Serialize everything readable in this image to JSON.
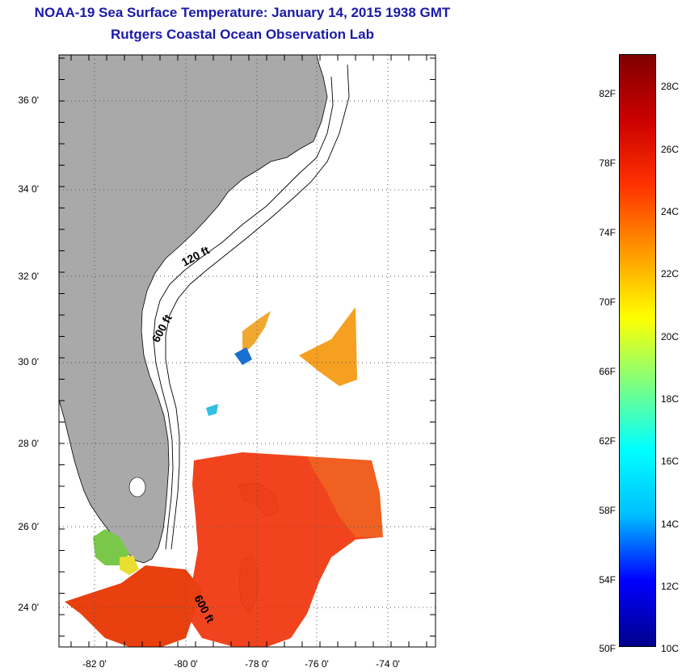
{
  "header": {
    "title": "NOAA-19 Sea Surface Temperature:  January 14, 2015 1938 GMT",
    "subtitle": "Rutgers Coastal Ocean Observation Lab"
  },
  "map": {
    "lat_labels": [
      "36 0'",
      "34 0'",
      "32 0'",
      "30 0'",
      "28 0'",
      "26 0'",
      "24 0'"
    ],
    "lon_labels": [
      "-82 0'",
      "-80 0'",
      "-78 0'",
      "-76 0'",
      "-74 0'"
    ],
    "contour_labels": [
      "120 ft",
      "600 ft",
      "600 ft"
    ],
    "land_color": "#a9a9a9",
    "ocean_color": "#ffffff"
  },
  "colorbar": {
    "f_labels": [
      "82F",
      "78F",
      "74F",
      "70F",
      "66F",
      "62F",
      "58F",
      "54F",
      "50F"
    ],
    "c_labels": [
      "28C",
      "26C",
      "24C",
      "22C",
      "20C",
      "18C",
      "16C",
      "14C",
      "12C",
      "10C"
    ],
    "colors": [
      "#00008b",
      "#0000ff",
      "#00bfff",
      "#00ffff",
      "#7fff7f",
      "#ffff00",
      "#ff9900",
      "#ff3300",
      "#cc0000",
      "#800000"
    ]
  }
}
